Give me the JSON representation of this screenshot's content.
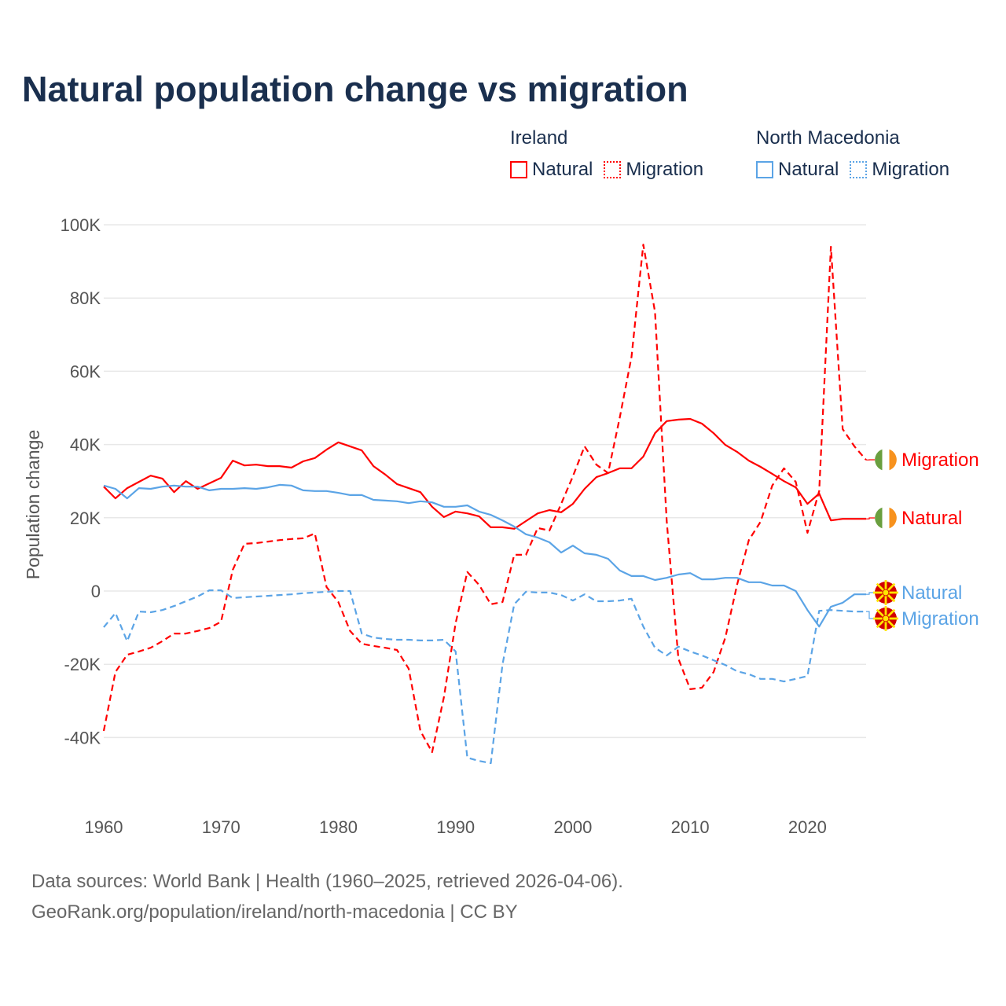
{
  "title": "Natural population change vs migration",
  "legend": {
    "groups": [
      {
        "name": "Ireland",
        "items": [
          "Natural",
          "Migration"
        ],
        "color": "#ff0000"
      },
      {
        "name": "North Macedonia",
        "items": [
          "Natural",
          "Migration"
        ],
        "color": "#5ba4e6"
      }
    ]
  },
  "footer": {
    "line1": "Data sources: World Bank | Health (1960–2025, retrieved 2026-04-06).",
    "line2": "GeoRank.org/population/ireland/north-macedonia | CC BY"
  },
  "chart_data": {
    "type": "line",
    "title": "Natural population change vs migration",
    "xlabel": "",
    "ylabel": "Population change",
    "xlim": [
      1960,
      2025
    ],
    "ylim": [
      -50000,
      100000
    ],
    "yticks": [
      100000,
      80000,
      60000,
      40000,
      20000,
      0,
      -20000,
      -40000
    ],
    "ytick_labels": [
      "100K",
      "80K",
      "60K",
      "40K",
      "20K",
      "0",
      "-20K",
      "-40K"
    ],
    "xticks": [
      1960,
      1970,
      1980,
      1990,
      2000,
      2010,
      2020
    ],
    "xtick_labels": [
      "1960",
      "1970",
      "1980",
      "1990",
      "2000",
      "2010",
      "2020"
    ],
    "grid": true,
    "legend_position": "top-right",
    "x_start": 1960,
    "series": [
      {
        "name": "Ireland Natural",
        "label": "Natural",
        "country": "Ireland",
        "color": "#ff0000",
        "dash": false,
        "values": [
          28.5,
          25.3,
          28.1,
          29.8,
          31.5,
          30.7,
          27,
          30,
          27.9,
          29.4,
          30.9,
          35.6,
          34.3,
          34.5,
          34.1,
          34.1,
          33.7,
          35.4,
          36.3,
          38.6,
          40.6,
          39.5,
          38.4,
          34.1,
          31.8,
          29.2,
          28.1,
          27,
          23,
          20.2,
          21.7,
          21.2,
          20.4,
          17.4,
          17.4,
          17,
          19.1,
          21.2,
          22.1,
          21.5,
          23.8,
          27.9,
          31.1,
          32.2,
          33.5,
          33.5,
          36.7,
          43.1,
          46.4,
          46.8,
          47,
          45.7,
          43.1,
          39.9,
          38,
          35.6,
          33.9,
          32,
          30,
          28.3,
          23.8,
          26.6,
          19.3,
          19.7,
          19.7,
          19.7
        ]
      },
      {
        "name": "Ireland Migration",
        "label": "Migration",
        "country": "Ireland",
        "color": "#ff0000",
        "dash": true,
        "values": [
          -38.2,
          -22.1,
          -17.4,
          -16.5,
          -15.5,
          -13.7,
          -11.6,
          -11.6,
          -10.9,
          -10.1,
          -8.4,
          5.8,
          12.9,
          13.1,
          13.5,
          13.9,
          14.2,
          14.4,
          15.7,
          1.1,
          -3,
          -10.9,
          -14.4,
          -15,
          -15.5,
          -16.1,
          -21.2,
          -38.2,
          -44,
          -29,
          -8.8,
          5.2,
          1.7,
          -3.6,
          -3,
          9.9,
          9.9,
          17.2,
          16.5,
          23.8,
          31.3,
          39.5,
          34.5,
          32.2,
          47.4,
          63.9,
          94.6,
          76.2,
          19.1,
          -18.5,
          -26.8,
          -26.4,
          -22.1,
          -12.7,
          1.7,
          13.9,
          18.9,
          28.8,
          33.5,
          29.8,
          15.9,
          27.3,
          94,
          44.2,
          39.5,
          35.8
        ]
      },
      {
        "name": "North Macedonia Natural",
        "label": "Natural",
        "country": "North Macedonia",
        "color": "#5ba4e6",
        "dash": false,
        "values": [
          28.8,
          27.9,
          25.3,
          28.1,
          27.9,
          28.5,
          28.8,
          28.5,
          28.5,
          27.5,
          27.9,
          27.9,
          28.1,
          27.9,
          28.3,
          29,
          28.8,
          27.5,
          27.3,
          27.3,
          26.8,
          26.2,
          26.2,
          24.9,
          24.7,
          24.5,
          24,
          24.5,
          24.2,
          23,
          23,
          23.4,
          21.7,
          20.8,
          19.3,
          17.6,
          15.5,
          14.6,
          13.3,
          10.5,
          12.4,
          10.3,
          9.9,
          8.8,
          5.6,
          4.1,
          4.1,
          3,
          3.6,
          4.5,
          4.9,
          3.2,
          3.2,
          3.6,
          3.6,
          2.4,
          2.4,
          1.5,
          1.5,
          0,
          -5.2,
          -9.7,
          -4.3,
          -3.2,
          -0.9,
          -0.9
        ]
      },
      {
        "name": "North Macedonia Migration",
        "label": "Migration",
        "country": "North Macedonia",
        "color": "#5ba4e6",
        "dash": true,
        "values": [
          -9.9,
          -6,
          -13.7,
          -5.6,
          -5.8,
          -5.2,
          -4.1,
          -2.8,
          -1.5,
          0.2,
          0.2,
          -1.9,
          -1.7,
          -1.5,
          -1.3,
          -1.1,
          -0.9,
          -0.6,
          -0.4,
          -0.2,
          0,
          0,
          -11.6,
          -12.7,
          -13.1,
          -13.3,
          -13.3,
          -13.5,
          -13.5,
          -13.3,
          -16.5,
          -45.5,
          -46.4,
          -47,
          -20,
          -3.6,
          -0.2,
          -0.4,
          -0.4,
          -1.1,
          -2.6,
          -0.9,
          -2.8,
          -2.8,
          -2.6,
          -2.1,
          -9.7,
          -15.5,
          -17.6,
          -15.2,
          -16.5,
          -17.6,
          -18.9,
          -20.2,
          -21.9,
          -22.7,
          -24,
          -24,
          -24.7,
          -24,
          -23.2,
          -5.4,
          -5.2,
          -5.4,
          -5.6,
          -5.6
        ]
      }
    ],
    "value_unit": "thousands"
  }
}
